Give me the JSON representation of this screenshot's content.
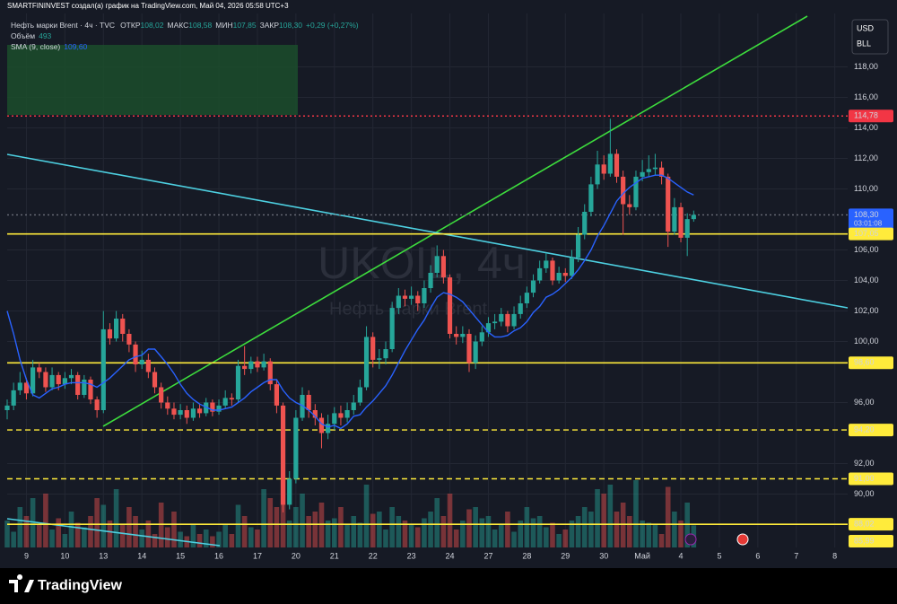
{
  "header": {
    "credit": "SMARTFININVEST создал(а) график на TradingView.com, Май 04, 2026 05:58 UTC+3",
    "symbol": "Нефть марки Brent · 4ч · TVC",
    "ohlc": [
      {
        "label": "ОТКР",
        "value": "108,02"
      },
      {
        "label": "МАКС",
        "value": "108,58"
      },
      {
        "label": "МИН",
        "value": "107,85"
      },
      {
        "label": "ЗАКР",
        "value": "108,30"
      }
    ],
    "change": "+0,29 (+0,27%)",
    "volume_label": "Объём",
    "volume_value": "493",
    "sma_label": "SMA (9, close)",
    "sma_value": "109,60"
  },
  "currency": "USD",
  "unit": "BLL",
  "footer": "TradingView",
  "chart_data": {
    "type": "candlestick",
    "watermark": "UKOIL, 4ч",
    "watermark_subtitle": "Нефть марки Brent",
    "up_color": "#26a69a",
    "down_color": "#ef5350",
    "sma_color": "#2962ff",
    "grid": true,
    "xlim": [
      0,
      131
    ],
    "ylim": [
      86.5,
      121.5
    ],
    "xticks": [
      {
        "value": 3,
        "label": "9"
      },
      {
        "value": 9,
        "label": "10"
      },
      {
        "value": 15,
        "label": "13"
      },
      {
        "value": 21,
        "label": "14"
      },
      {
        "value": 27,
        "label": "15"
      },
      {
        "value": 33,
        "label": "16"
      },
      {
        "value": 39,
        "label": "17"
      },
      {
        "value": 45,
        "label": "20"
      },
      {
        "value": 51,
        "label": "21"
      },
      {
        "value": 57,
        "label": "22"
      },
      {
        "value": 63,
        "label": "23"
      },
      {
        "value": 69,
        "label": "24"
      },
      {
        "value": 75,
        "label": "27"
      },
      {
        "value": 81,
        "label": "28"
      },
      {
        "value": 87,
        "label": "29"
      },
      {
        "value": 93,
        "label": "30"
      },
      {
        "value": 99,
        "label": "Май"
      },
      {
        "value": 105,
        "label": "4"
      },
      {
        "value": 111,
        "label": "5"
      },
      {
        "value": 117,
        "label": "6"
      },
      {
        "value": 123,
        "label": "7"
      },
      {
        "value": 129,
        "label": "8"
      }
    ],
    "yticks": [
      {
        "value": 90,
        "label": "90,00"
      },
      {
        "value": 92,
        "label": "92,00"
      },
      {
        "value": 96,
        "label": "96,00"
      },
      {
        "value": 100,
        "label": "100,00"
      },
      {
        "value": 102,
        "label": "102,00"
      },
      {
        "value": 104,
        "label": "104,00"
      },
      {
        "value": 106,
        "label": "106,00"
      },
      {
        "value": 110,
        "label": "110,00"
      },
      {
        "value": 112,
        "label": "112,00"
      },
      {
        "value": 114,
        "label": "114,00"
      },
      {
        "value": 116,
        "label": "116,00"
      },
      {
        "value": 118,
        "label": "118,00"
      }
    ],
    "ohlc": [
      [
        95.5,
        96.2,
        94.9,
        95.8
      ],
      [
        95.8,
        97.3,
        95.5,
        96.8
      ],
      [
        96.8,
        98.0,
        96.5,
        97.3
      ],
      [
        97.3,
        97.6,
        96.2,
        96.6
      ],
      [
        96.6,
        98.8,
        96.4,
        98.3
      ],
      [
        98.3,
        98.6,
        97.6,
        98.0
      ],
      [
        98.0,
        98.3,
        96.7,
        97.0
      ],
      [
        97.0,
        98.3,
        96.8,
        97.8
      ],
      [
        97.8,
        98.0,
        96.8,
        97.2
      ],
      [
        97.2,
        98.0,
        96.9,
        97.6
      ],
      [
        97.6,
        98.2,
        97.2,
        97.8
      ],
      [
        97.8,
        98.0,
        96.2,
        96.5
      ],
      [
        96.5,
        97.8,
        96.3,
        97.5
      ],
      [
        97.5,
        97.7,
        95.9,
        96.2
      ],
      [
        96.2,
        96.4,
        95.0,
        95.5
      ],
      [
        95.5,
        102.0,
        95.3,
        100.8
      ],
      [
        100.8,
        101.2,
        99.8,
        100.2
      ],
      [
        100.2,
        102.0,
        100.0,
        101.5
      ],
      [
        101.5,
        101.8,
        100.0,
        100.5
      ],
      [
        100.5,
        100.8,
        99.3,
        99.8
      ],
      [
        99.8,
        100.0,
        98.0,
        98.5
      ],
      [
        98.5,
        99.4,
        98.2,
        98.8
      ],
      [
        98.8,
        99.2,
        97.6,
        98.0
      ],
      [
        98.0,
        98.3,
        96.6,
        97.0
      ],
      [
        97.0,
        97.3,
        95.6,
        96.0
      ],
      [
        96.0,
        96.4,
        95.2,
        95.6
      ],
      [
        95.6,
        96.0,
        94.9,
        95.2
      ],
      [
        95.2,
        95.9,
        94.9,
        95.5
      ],
      [
        95.5,
        95.8,
        94.6,
        95.0
      ],
      [
        95.0,
        96.0,
        94.8,
        95.6
      ],
      [
        95.6,
        95.9,
        95.0,
        95.3
      ],
      [
        95.3,
        96.3,
        95.1,
        96.0
      ],
      [
        96.0,
        96.2,
        95.1,
        95.4
      ],
      [
        95.4,
        96.2,
        95.2,
        95.8
      ],
      [
        95.8,
        96.8,
        95.6,
        96.3
      ],
      [
        96.3,
        96.6,
        95.8,
        96.2
      ],
      [
        96.2,
        98.8,
        96.0,
        98.4
      ],
      [
        98.4,
        99.7,
        97.8,
        98.2
      ],
      [
        98.2,
        99.0,
        97.9,
        98.7
      ],
      [
        98.7,
        99.0,
        98.0,
        98.3
      ],
      [
        98.3,
        99.2,
        98.1,
        98.7
      ],
      [
        98.7,
        98.9,
        96.8,
        97.2
      ],
      [
        97.2,
        97.5,
        95.3,
        95.8
      ],
      [
        95.8,
        96.0,
        88.8,
        89.3
      ],
      [
        89.3,
        91.5,
        89.0,
        91.0
      ],
      [
        91.0,
        95.5,
        90.7,
        95.0
      ],
      [
        95.0,
        97.0,
        94.8,
        96.5
      ],
      [
        96.5,
        96.8,
        95.0,
        95.5
      ],
      [
        95.5,
        95.9,
        94.5,
        95.0
      ],
      [
        95.0,
        95.3,
        93.0,
        94.0
      ],
      [
        94.0,
        95.2,
        93.6,
        94.6
      ],
      [
        94.6,
        95.7,
        94.2,
        95.3
      ],
      [
        95.3,
        95.8,
        94.5,
        95.0
      ],
      [
        95.0,
        96.0,
        94.7,
        95.5
      ],
      [
        95.5,
        96.5,
        95.2,
        96.0
      ],
      [
        96.0,
        97.5,
        95.8,
        97.0
      ],
      [
        97.0,
        101.0,
        96.8,
        100.3
      ],
      [
        100.3,
        100.6,
        98.3,
        98.8
      ],
      [
        98.8,
        99.5,
        98.2,
        98.9
      ],
      [
        98.9,
        100.0,
        98.5,
        99.5
      ],
      [
        99.5,
        102.6,
        99.3,
        102.2
      ],
      [
        102.2,
        103.5,
        101.8,
        103.0
      ],
      [
        103.0,
        103.4,
        102.3,
        102.8
      ],
      [
        102.8,
        103.6,
        102.4,
        103.0
      ],
      [
        103.0,
        103.3,
        102.0,
        102.5
      ],
      [
        102.5,
        104.0,
        102.2,
        103.5
      ],
      [
        103.5,
        105.0,
        103.2,
        104.5
      ],
      [
        104.5,
        106.3,
        104.2,
        105.6
      ],
      [
        105.6,
        106.0,
        103.8,
        104.2
      ],
      [
        104.2,
        104.4,
        100.2,
        100.5
      ],
      [
        100.5,
        101.0,
        99.8,
        100.3
      ],
      [
        100.3,
        101.0,
        99.9,
        100.5
      ],
      [
        100.5,
        100.8,
        98.0,
        98.6
      ],
      [
        98.6,
        100.4,
        98.2,
        100.0
      ],
      [
        100.0,
        101.0,
        99.7,
        100.6
      ],
      [
        100.6,
        101.6,
        100.3,
        101.2
      ],
      [
        101.2,
        101.8,
        100.8,
        101.3
      ],
      [
        101.3,
        102.2,
        101.0,
        101.8
      ],
      [
        101.8,
        102.0,
        100.6,
        101.0
      ],
      [
        101.0,
        102.3,
        100.8,
        101.8
      ],
      [
        101.8,
        103.0,
        101.5,
        102.5
      ],
      [
        102.5,
        103.6,
        102.2,
        103.2
      ],
      [
        103.2,
        104.4,
        102.9,
        104.0
      ],
      [
        104.0,
        105.3,
        103.8,
        104.8
      ],
      [
        104.8,
        105.8,
        104.5,
        105.3
      ],
      [
        105.3,
        105.5,
        103.7,
        104.0
      ],
      [
        104.0,
        104.9,
        103.8,
        104.5
      ],
      [
        104.5,
        104.8,
        103.9,
        104.3
      ],
      [
        104.3,
        106.0,
        104.1,
        105.5
      ],
      [
        105.5,
        107.5,
        105.2,
        107.0
      ],
      [
        107.0,
        109.0,
        106.7,
        108.5
      ],
      [
        108.5,
        110.8,
        108.2,
        110.3
      ],
      [
        110.3,
        112.5,
        110.0,
        111.6
      ],
      [
        111.6,
        112.2,
        110.6,
        111.0
      ],
      [
        111.0,
        114.6,
        110.8,
        112.3
      ],
      [
        112.3,
        112.6,
        110.4,
        110.8
      ],
      [
        110.8,
        111.2,
        107.0,
        109.0
      ],
      [
        109.0,
        109.6,
        108.3,
        108.8
      ],
      [
        108.8,
        111.2,
        108.6,
        110.8
      ],
      [
        110.8,
        111.9,
        110.5,
        111.1
      ],
      [
        111.1,
        112.2,
        110.8,
        111.3
      ],
      [
        111.3,
        112.3,
        110.9,
        111.4
      ],
      [
        111.4,
        111.8,
        110.3,
        110.8
      ],
      [
        110.8,
        111.0,
        106.2,
        107.2
      ],
      [
        107.2,
        109.4,
        107.0,
        108.8
      ],
      [
        108.8,
        109.1,
        106.5,
        106.8
      ],
      [
        106.8,
        108.4,
        105.6,
        108.02
      ],
      [
        108.02,
        108.58,
        107.85,
        108.3
      ]
    ],
    "volume": [
      600,
      350,
      900,
      700,
      1100,
      500,
      1200,
      400,
      650,
      300,
      800,
      550,
      450,
      700,
      1100,
      950,
      600,
      1300,
      500,
      900,
      700,
      400,
      600,
      300,
      1000,
      450,
      800,
      350,
      250,
      500,
      300,
      400,
      250,
      350,
      500,
      300,
      950,
      700,
      450,
      400,
      1300,
      1100,
      900,
      1500,
      600,
      900,
      1200,
      700,
      800,
      1000,
      600,
      650,
      900,
      500,
      700,
      550,
      1400,
      750,
      800,
      400,
      900,
      700,
      600,
      500,
      450,
      650,
      800,
      1100,
      700,
      1200,
      400,
      600,
      850,
      900,
      650,
      700,
      400,
      500,
      800,
      350,
      600,
      900,
      650,
      700,
      450,
      550,
      300,
      400,
      600,
      700,
      900,
      800,
      1300,
      1200,
      1400,
      800,
      1000,
      700,
      1500,
      600,
      550,
      500,
      300,
      1350,
      800,
      600,
      1000,
      493
    ],
    "sma": [
      102.0,
      100.5,
      98.8,
      97.5,
      96.5,
      96.3,
      96.6,
      96.9,
      97.0,
      97.2,
      97.3,
      97.3,
      97.3,
      97.2,
      97.0,
      97.3,
      97.6,
      98.0,
      98.4,
      98.8,
      99.0,
      99.1,
      99.5,
      99.5,
      99.0,
      98.5,
      97.9,
      97.2,
      96.6,
      96.2,
      95.9,
      95.7,
      95.5,
      95.5,
      95.6,
      95.7,
      96.0,
      96.3,
      96.7,
      97.0,
      97.3,
      97.5,
      97.5,
      96.8,
      96.3,
      96.0,
      95.8,
      95.5,
      95.1,
      94.6,
      94.4,
      94.5,
      94.3,
      94.6,
      95.1,
      95.2,
      95.7,
      96.1,
      96.6,
      97.1,
      97.8,
      98.6,
      99.4,
      100.1,
      100.8,
      101.4,
      102.2,
      102.9,
      103.2,
      103.1,
      102.9,
      102.6,
      102.1,
      101.6,
      101.1,
      100.6,
      100.3,
      100.3,
      100.4,
      100.7,
      100.9,
      101.3,
      101.9,
      102.3,
      102.9,
      103.1,
      103.4,
      103.8,
      104.2,
      104.7,
      105.3,
      106.0,
      106.9,
      107.6,
      108.4,
      109.2,
      109.7,
      110.1,
      110.4,
      110.7,
      110.8,
      110.9,
      110.9,
      110.7,
      110.4,
      110.1,
      109.8,
      109.6
    ],
    "levels": [
      {
        "value": 114.78,
        "label": "114,78",
        "color": "#f23645",
        "style": "dotted",
        "box": "#f23645",
        "text_color": "#ffffff"
      },
      {
        "value": 108.3,
        "label": "108,30",
        "countdown": "03:01:08",
        "color": "#6a6d78",
        "style": "dotted",
        "box": "#2962ff",
        "text_color": "#ffffff"
      },
      {
        "value": 107.05,
        "label": "107,05",
        "color": "#ffeb3b",
        "style": "solid",
        "box": "#ffeb3b",
        "text_color": "#000000"
      },
      {
        "value": 98.6,
        "label": "98,60",
        "color": "#ffeb3b",
        "style": "solid",
        "box": "#ffeb3b",
        "text_color": "#000000"
      },
      {
        "value": 94.2,
        "label": "94,20",
        "color": "#ffeb3b",
        "style": "dashed",
        "box": "#ffeb3b",
        "text_color": "#000000"
      },
      {
        "value": 91.0,
        "label": "91,00",
        "color": "#ffeb3b",
        "style": "dashed",
        "box": "#ffeb3b",
        "text_color": "#000000"
      },
      {
        "value": 88.02,
        "label": "88,02",
        "color": "#ffeb3b",
        "style": "solid",
        "box": "#ffeb3b",
        "text_color": "#000000"
      },
      {
        "value": 85.99,
        "label": "85,99",
        "color": "#ffeb3b",
        "style": "solid",
        "box": "#ffeb3b",
        "text_color": "#000000"
      }
    ]
  }
}
